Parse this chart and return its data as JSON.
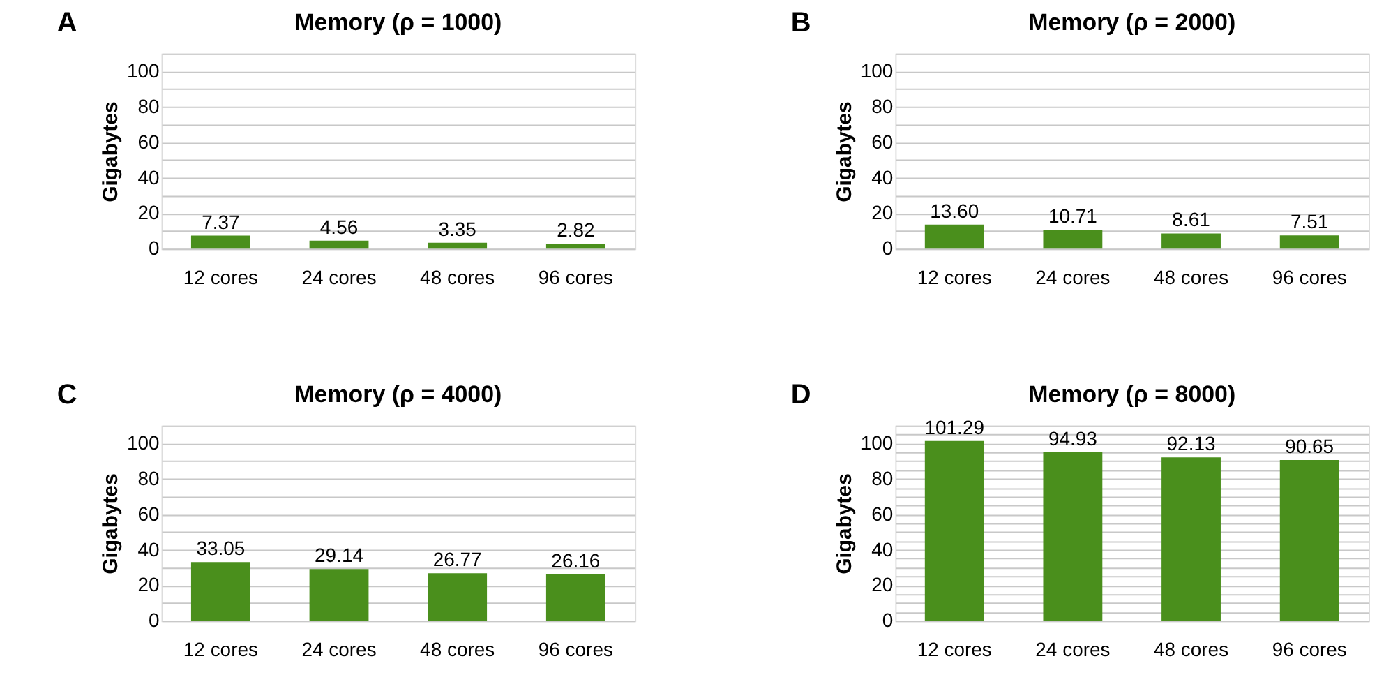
{
  "chart_data": [
    {
      "type": "bar",
      "title": "Memory (ρ = 1000)",
      "ylabel": "Gigabytes",
      "annotations": [
        "A"
      ],
      "categories": [
        "12 cores",
        "24 cores",
        "48 cores",
        "96 cores"
      ],
      "values": [
        7.37,
        4.56,
        3.35,
        2.82
      ],
      "color": "#4a8f1c",
      "data_labels": true,
      "ylim": [
        0,
        110
      ],
      "yticks": [
        0,
        {
          "value": 10,
          "label": null
        },
        20,
        {
          "value": 30,
          "label": null
        },
        40,
        {
          "value": 50,
          "label": null
        },
        60,
        {
          "value": 70,
          "label": null
        },
        80,
        {
          "value": 90,
          "label": null
        },
        100,
        {
          "value": 110,
          "label": null
        }
      ],
      "grid": "y"
    },
    {
      "type": "bar",
      "title": "Memory (ρ = 2000)",
      "ylabel": "Gigabytes",
      "annotations": [
        "B"
      ],
      "categories": [
        "12 cores",
        "24 cores",
        "48 cores",
        "96 cores"
      ],
      "values": [
        13.6,
        10.71,
        8.61,
        7.51
      ],
      "color": "#4a8f1c",
      "data_labels": true,
      "value_labels": [
        "13.60",
        "10.71",
        "8.61",
        "7.51"
      ],
      "ylim": [
        0,
        110
      ],
      "yticks": [
        0,
        {
          "value": 10,
          "label": null
        },
        20,
        {
          "value": 30,
          "label": null
        },
        40,
        {
          "value": 50,
          "label": null
        },
        60,
        {
          "value": 70,
          "label": null
        },
        80,
        {
          "value": 90,
          "label": null
        },
        100,
        {
          "value": 110,
          "label": null
        }
      ],
      "grid": "y"
    },
    {
      "type": "bar",
      "title": "Memory (ρ = 4000)",
      "ylabel": "Gigabytes",
      "annotations": [
        "C"
      ],
      "categories": [
        "12 cores",
        "24 cores",
        "48 cores",
        "96 cores"
      ],
      "values": [
        33.05,
        29.14,
        26.77,
        26.16
      ],
      "color": "#4a8f1c",
      "data_labels": true,
      "ylim": [
        0,
        110
      ],
      "yticks": [
        0,
        {
          "value": 10,
          "label": null
        },
        20,
        {
          "value": 30,
          "label": null
        },
        40,
        {
          "value": 50,
          "label": null
        },
        60,
        {
          "value": 70,
          "label": null
        },
        80,
        {
          "value": 90,
          "label": null
        },
        100,
        {
          "value": 110,
          "label": null
        }
      ],
      "grid": "y"
    },
    {
      "type": "bar",
      "title": "Memory (ρ = 8000)",
      "ylabel": "Gigabytes",
      "annotations": [
        "D"
      ],
      "categories": [
        "12 cores",
        "24 cores",
        "48 cores",
        "96 cores"
      ],
      "values": [
        101.29,
        94.93,
        92.13,
        90.65
      ],
      "color": "#4a8f1c",
      "data_labels": true,
      "ylim": [
        0,
        110
      ],
      "yticks": [
        0,
        {
          "value": 5,
          "label": null
        },
        {
          "value": 10,
          "label": null
        },
        {
          "value": 15,
          "label": null
        },
        20,
        {
          "value": 25,
          "label": null
        },
        {
          "value": 30,
          "label": null
        },
        {
          "value": 35,
          "label": null
        },
        40,
        {
          "value": 45,
          "label": null
        },
        {
          "value": 50,
          "label": null
        },
        {
          "value": 55,
          "label": null
        },
        60,
        {
          "value": 65,
          "label": null
        },
        {
          "value": 70,
          "label": null
        },
        {
          "value": 75,
          "label": null
        },
        80,
        {
          "value": 85,
          "label": null
        },
        {
          "value": 90,
          "label": null
        },
        {
          "value": 95,
          "label": null
        },
        100,
        {
          "value": 105,
          "label": null
        },
        {
          "value": 110,
          "label": null
        }
      ],
      "grid": "y"
    }
  ]
}
